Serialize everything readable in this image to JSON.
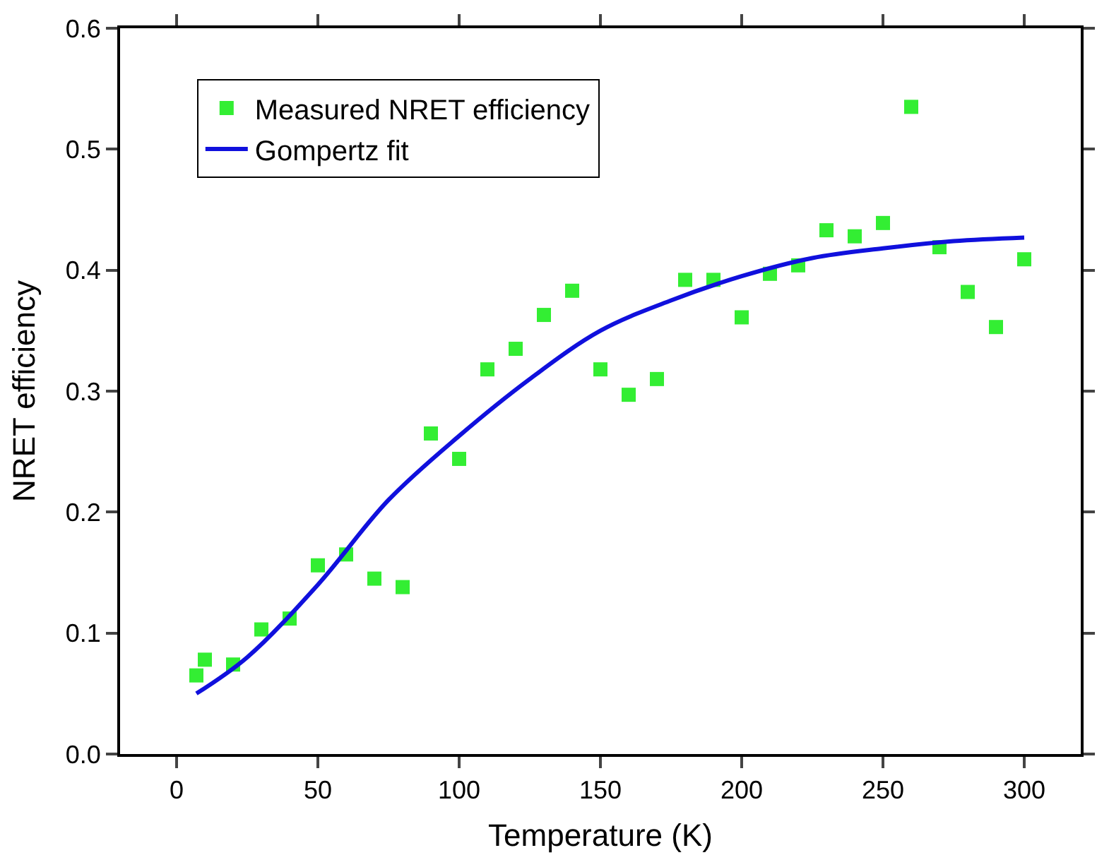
{
  "chart_data": {
    "type": "scatter",
    "xlabel": "Temperature (K)",
    "ylabel": "NRET efficiency",
    "xlim": [
      -20,
      320
    ],
    "xticks": [
      0,
      50,
      100,
      150,
      200,
      250,
      300
    ],
    "ylim": [
      0.0,
      0.6
    ],
    "yticks": [
      {
        "value": 0,
        "label": "0.0"
      },
      0.1,
      0.2,
      0.3,
      0.4,
      0.5,
      0.6
    ],
    "grid": false,
    "legend": "top left",
    "series": [
      {
        "name": "Measured NRET efficiency",
        "marker": "square",
        "color": "#33ee33",
        "x": [
          7,
          10,
          20,
          30,
          40,
          50,
          60,
          70,
          80,
          90,
          100,
          110,
          120,
          130,
          140,
          150,
          160,
          170,
          180,
          190,
          200,
          210,
          220,
          230,
          240,
          250,
          260,
          270,
          280,
          290,
          300
        ],
        "values": [
          0.065,
          0.078,
          0.074,
          0.103,
          0.112,
          0.156,
          0.165,
          0.145,
          0.138,
          0.265,
          0.244,
          0.318,
          0.335,
          0.363,
          0.383,
          0.318,
          0.297,
          0.31,
          0.392,
          0.392,
          0.361,
          0.397,
          0.404,
          0.433,
          0.428,
          0.439,
          0.535,
          0.419,
          0.382,
          0.353,
          0.409
        ]
      },
      {
        "name": "Gompertz fit",
        "type": "line",
        "marker": "none",
        "line_style": "solid",
        "color": "#1010dd",
        "x": [
          7,
          25,
          50,
          75,
          100,
          125,
          150,
          175,
          200,
          225,
          250,
          275,
          300
        ],
        "values": [
          0.05,
          0.08,
          0.14,
          0.21,
          0.263,
          0.31,
          0.35,
          0.375,
          0.395,
          0.41,
          0.418,
          0.424,
          0.427
        ]
      }
    ]
  }
}
